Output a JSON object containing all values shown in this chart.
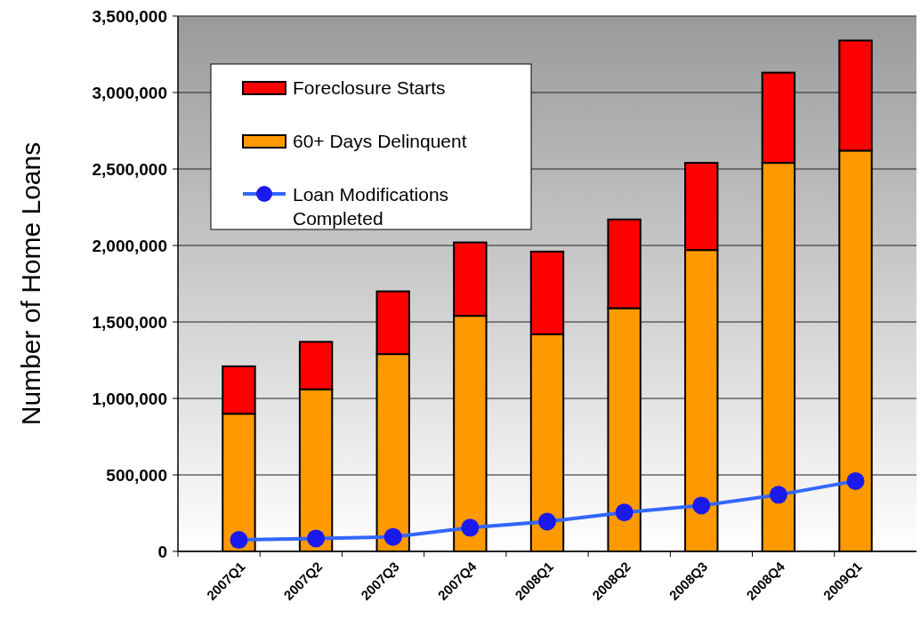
{
  "chart_data": {
    "type": "bar",
    "stacked": true,
    "ylabel": "Number of  Home Loans",
    "categories": [
      "2007Q1",
      "2007Q2",
      "2007Q3",
      "2007Q4",
      "2008Q1",
      "2008Q2",
      "2008Q3",
      "2008Q4",
      "2009Q1"
    ],
    "series": [
      {
        "name": "60+ Days Delinquent",
        "color": "#ff9900",
        "values": [
          900000,
          1060000,
          1290000,
          1540000,
          1420000,
          1590000,
          1970000,
          2540000,
          2620000
        ]
      },
      {
        "name": "Foreclosure Starts",
        "color": "#ff0000",
        "values": [
          310000,
          310000,
          410000,
          480000,
          540000,
          580000,
          570000,
          590000,
          720000
        ]
      },
      {
        "name": "Loan Modifications Completed",
        "type": "line",
        "color": "#3366ff",
        "values": [
          75000,
          85000,
          95000,
          155000,
          195000,
          255000,
          300000,
          370000,
          460000
        ]
      }
    ],
    "ylim": [
      0,
      3500000
    ],
    "yticks": [
      0,
      {
        "value": 500000,
        "label": "500,000"
      },
      {
        "value": 1000000,
        "label": "1,000,000"
      },
      {
        "value": 1500000,
        "label": "1,500,000"
      },
      {
        "value": 2000000,
        "label": "2,000,000"
      },
      {
        "value": 2500000,
        "label": "2,500,000"
      },
      {
        "value": 3000000,
        "label": "3,000,000"
      },
      {
        "value": 3500000,
        "label": "3,500,000"
      }
    ],
    "grid": "y",
    "legend": "top left",
    "marker": "circle",
    "line_style": "solid"
  }
}
